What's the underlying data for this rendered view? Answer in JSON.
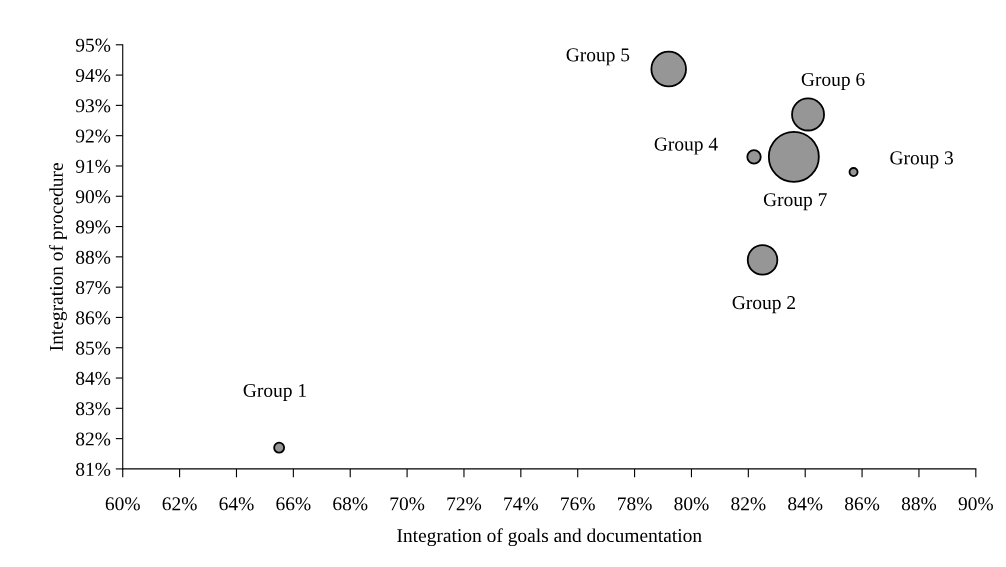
{
  "chart_data": {
    "type": "bubble",
    "xlabel": "Integration of goals and documentation",
    "ylabel": "Integration of procedure",
    "x": [
      65.5,
      82.5,
      85.7,
      82.2,
      79.2,
      84.1,
      83.6
    ],
    "values": [
      81.7,
      87.9,
      90.8,
      91.3,
      94.2,
      92.7,
      91.3
    ],
    "sizes": [
      0.04,
      0.35,
      0.026,
      0.072,
      0.48,
      0.41,
      1
    ],
    "color": "#969696",
    "annotations": [
      {
        "text": "Group 1",
        "x": 65.5,
        "y": 81.7
      },
      {
        "text": "Group 2",
        "x": 82.5,
        "y": 87.9
      },
      {
        "text": "Group 3",
        "x": 85.7,
        "y": 90.8
      },
      {
        "text": "Group 4",
        "x": 82.2,
        "y": 91.3
      },
      {
        "text": "Group 5",
        "x": 79.2,
        "y": 94.2
      },
      {
        "text": "Group 6",
        "x": 84.1,
        "y": 92.7
      },
      {
        "text": "Group 7",
        "x": 83.6,
        "y": 91.3
      }
    ],
    "xlim": [
      60,
      90
    ],
    "xticks": [
      {
        "value": 60,
        "label": "60%"
      },
      {
        "value": 62,
        "label": "62%"
      },
      {
        "value": 64,
        "label": "64%"
      },
      {
        "value": 66,
        "label": "66%"
      },
      {
        "value": 68,
        "label": "68%"
      },
      {
        "value": 70,
        "label": "70%"
      },
      {
        "value": 72,
        "label": "72%"
      },
      {
        "value": 74,
        "label": "74%"
      },
      {
        "value": 76,
        "label": "76%"
      },
      {
        "value": 78,
        "label": "78%"
      },
      {
        "value": 80,
        "label": "80%"
      },
      {
        "value": 82,
        "label": "82%"
      },
      {
        "value": 84,
        "label": "84%"
      },
      {
        "value": 86,
        "label": "86%"
      },
      {
        "value": 88,
        "label": "88%"
      },
      {
        "value": 90,
        "label": "90%"
      }
    ],
    "ylim": [
      81,
      95
    ],
    "yticks": [
      {
        "value": 81,
        "label": "81%"
      },
      {
        "value": 82,
        "label": "82%"
      },
      {
        "value": 83,
        "label": "83%"
      },
      {
        "value": 84,
        "label": "84%"
      },
      {
        "value": 85,
        "label": "85%"
      },
      {
        "value": 86,
        "label": "86%"
      },
      {
        "value": 87,
        "label": "87%"
      },
      {
        "value": 88,
        "label": "88%"
      },
      {
        "value": 89,
        "label": "89%"
      },
      {
        "value": 90,
        "label": "90%"
      },
      {
        "value": 91,
        "label": "91%"
      },
      {
        "value": 92,
        "label": "92%"
      },
      {
        "value": 93,
        "label": "93%"
      },
      {
        "value": 94,
        "label": "94%"
      },
      {
        "value": 95,
        "label": "95%"
      }
    ],
    "grid": false,
    "legend": false
  }
}
